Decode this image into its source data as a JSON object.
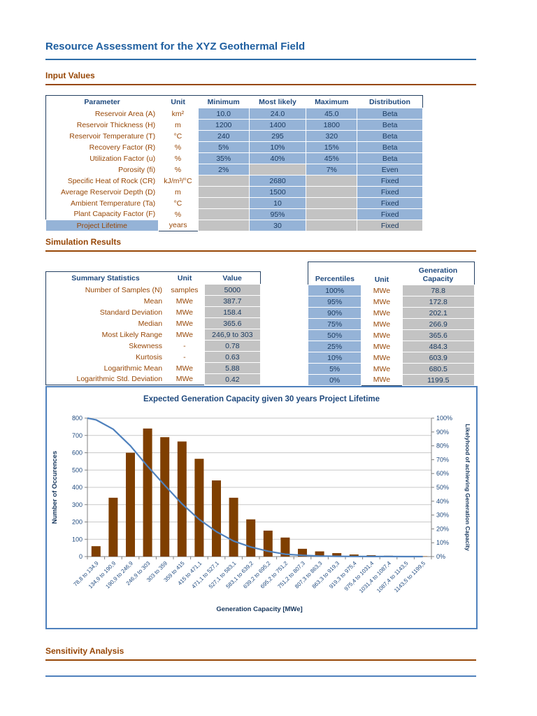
{
  "doc": {
    "title": "Resource Assessment for the XYZ Geothermal Field"
  },
  "sections": {
    "input_values": "Input Values",
    "simulation_results": "Simulation Results",
    "sensitivity_analysis": "Sensitivity Analysis"
  },
  "colors": {
    "title_blue": "#1F5FA0",
    "header_blue": "#1F497D",
    "brown": "#974706",
    "cell_blue": "#95B3D7",
    "cell_gray": "#C3C3C3",
    "value_dark": "#17375D",
    "bar_brown": "#7F3F00",
    "line_blue": "#4F81BD",
    "chart_border": "#4F81BD"
  },
  "input_table": {
    "headers": {
      "parameter": "Parameter",
      "unit": "Unit",
      "minimum": "Minimum",
      "most_likely": "Most likely",
      "maximum": "Maximum",
      "distribution": "Distribution"
    },
    "rows": [
      {
        "parameter": "Reservoir Area (A)",
        "unit": "km²",
        "minimum": "10.0",
        "most_likely": "24.0",
        "maximum": "45.0",
        "distribution": "Beta",
        "style": "beta"
      },
      {
        "parameter": "Reservoir Thickness (H)",
        "unit": "m",
        "minimum": "1200",
        "most_likely": "1400",
        "maximum": "1800",
        "distribution": "Beta",
        "style": "beta"
      },
      {
        "parameter": "Reservoir Temperature (T)",
        "unit": "°C",
        "minimum": "240",
        "most_likely": "295",
        "maximum": "320",
        "distribution": "Beta",
        "style": "beta"
      },
      {
        "parameter": "Recovery Factor (R)",
        "unit": "%",
        "minimum": "5%",
        "most_likely": "10%",
        "maximum": "15%",
        "distribution": "Beta",
        "style": "beta"
      },
      {
        "parameter": "Utilization Factor (u)",
        "unit": "%",
        "minimum": "35%",
        "most_likely": "40%",
        "maximum": "45%",
        "distribution": "Beta",
        "style": "beta"
      },
      {
        "parameter": "Porosity (fi)",
        "unit": "%",
        "minimum": "2%",
        "most_likely": "",
        "maximum": "7%",
        "distribution": "Even",
        "style": "even"
      },
      {
        "parameter": "Specific Heat of Rock (CR)",
        "unit": "kJ/m³/°C",
        "minimum": "",
        "most_likely": "2680",
        "maximum": "",
        "distribution": "Fixed",
        "style": "fixed"
      },
      {
        "parameter": "Average Reservoir Depth (D)",
        "unit": "m",
        "minimum": "",
        "most_likely": "1500",
        "maximum": "",
        "distribution": "Fixed",
        "style": "fixed"
      },
      {
        "parameter": "Ambient Temperature (Ta)",
        "unit": "°C",
        "minimum": "",
        "most_likely": "10",
        "maximum": "",
        "distribution": "Fixed",
        "style": "fixed"
      },
      {
        "parameter": "Plant Capacity Factor (F)",
        "unit": "%",
        "minimum": "",
        "most_likely": "95%",
        "maximum": "",
        "distribution": "Fixed",
        "style": "fixed"
      },
      {
        "parameter": "Project Lifetime",
        "unit": "years",
        "minimum": "",
        "most_likely": "30",
        "maximum": "",
        "distribution": "Fixed",
        "style": "fixed-highlight"
      }
    ]
  },
  "summary_table": {
    "headers": {
      "label": "Summary Statistics",
      "unit": "Unit",
      "value": "Value"
    },
    "rows": [
      {
        "label": "Number of Samples (N)",
        "unit": "samples",
        "value": "5000"
      },
      {
        "label": "Mean",
        "unit": "MWe",
        "value": "387.7"
      },
      {
        "label": "Standard Deviation",
        "unit": "MWe",
        "value": "158.4"
      },
      {
        "label": "Median",
        "unit": "MWe",
        "value": "365.6"
      },
      {
        "label": "Most Likely Range",
        "unit": "MWe",
        "value": "246,9 to 303"
      },
      {
        "label": "Skewness",
        "unit": "-",
        "value": "0.78"
      },
      {
        "label": "Kurtosis",
        "unit": "-",
        "value": "0.63"
      },
      {
        "label": "Logarithmic Mean",
        "unit": "MWe",
        "value": "5.88"
      },
      {
        "label": "Logarithmic Std. Deviation",
        "unit": "MWe",
        "value": "0.42"
      }
    ]
  },
  "percentile_table": {
    "headers": {
      "percentiles": "Percentiles",
      "unit": "Unit",
      "capacity": "Generation Capacity"
    },
    "rows": [
      {
        "percentile": "100%",
        "unit": "MWe",
        "value": "78.8"
      },
      {
        "percentile": "95%",
        "unit": "MWe",
        "value": "172.8"
      },
      {
        "percentile": "90%",
        "unit": "MWe",
        "value": "202.1"
      },
      {
        "percentile": "75%",
        "unit": "MWe",
        "value": "266.9"
      },
      {
        "percentile": "50%",
        "unit": "MWe",
        "value": "365.6"
      },
      {
        "percentile": "25%",
        "unit": "MWe",
        "value": "484.3"
      },
      {
        "percentile": "10%",
        "unit": "MWe",
        "value": "603.9"
      },
      {
        "percentile": "5%",
        "unit": "MWe",
        "value": "680.5"
      },
      {
        "percentile": "0%",
        "unit": "MWe",
        "value": "1199.5"
      }
    ]
  },
  "chart_data": {
    "type": "bar",
    "title": "Expected Generation Capacity given 30 years Project Lifetime",
    "xlabel": "Generation Capacity [MWe]",
    "ylabel": "Number of Occurences",
    "y2label": "Likelyhood of achieving Generation Capacity",
    "ylim": [
      0,
      800
    ],
    "ytick_step": 100,
    "y2lim": [
      0,
      100
    ],
    "y2tick_step": 10,
    "y2_unit": "%",
    "grid": true,
    "legend": "none",
    "categories": [
      "78,8 to 134,9",
      "134,9 to 190,9",
      "190,9 to 246,9",
      "246,9 to 303",
      "303 to 359",
      "359 to 415",
      "415 to 471,1",
      "471,1 to 527,1",
      "527,1 to 583,1",
      "583,1 to 639,2",
      "639,2 to 695,2",
      "695,2 to 751,2",
      "751,2 to 807,3",
      "807,3 to 863,3",
      "863,3 to 919,3",
      "919,3 to 975,4",
      "975,4 to 1031,4",
      "1031,4 to 1087,4",
      "1087,4 to 1143,5",
      "1143,5 to 1199,5"
    ],
    "bar_series": {
      "name": "Number of Occurences",
      "values": [
        60,
        340,
        600,
        740,
        690,
        665,
        565,
        440,
        340,
        215,
        150,
        110,
        45,
        30,
        20,
        12,
        8,
        5,
        3,
        2
      ]
    },
    "line_series": {
      "name": "Likelyhood of achieving Generation Capacity",
      "unit": "%",
      "note": "first value is at the left axis, then one per category center",
      "values": [
        100,
        98.8,
        92,
        80,
        65.2,
        51.4,
        38.1,
        26.8,
        18,
        11.2,
        6.9,
        3.9,
        1.7,
        0.9,
        0.4,
        0.2,
        0.1,
        0.06,
        0.03,
        0.01,
        0
      ]
    }
  }
}
